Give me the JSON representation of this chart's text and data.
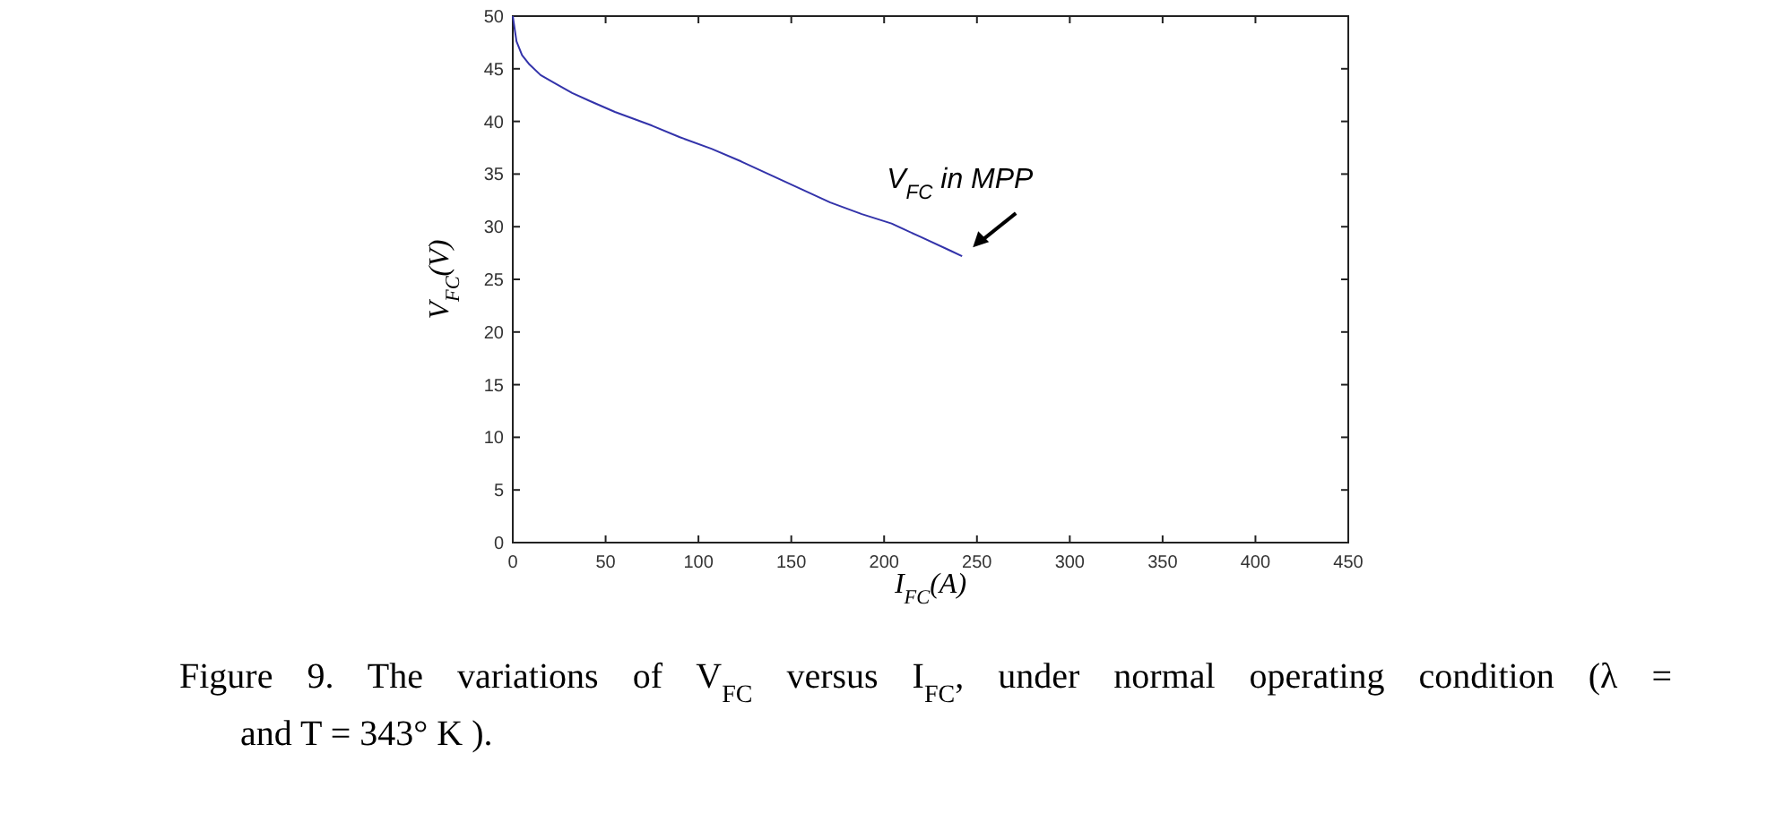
{
  "chart_data": {
    "type": "line",
    "xlabel": "I$_{FC}$(A)",
    "ylabel": "V$_{FC}$(V)",
    "x": [
      0,
      2,
      5,
      9,
      15,
      23,
      32,
      42,
      55,
      75,
      90,
      107,
      123,
      139,
      155,
      171,
      188,
      204,
      220,
      236,
      242
    ],
    "series": [
      {
        "color": "#3333aa",
        "values": [
          50,
          47.6,
          46.3,
          45.4,
          44.4,
          43.6,
          42.7,
          41.9,
          40.9,
          39.6,
          38.5,
          37.4,
          36.2,
          34.9,
          33.6,
          32.3,
          31.2,
          30.3,
          29.0,
          27.7,
          27.2
        ]
      }
    ],
    "xlim": [
      0,
      450
    ],
    "xticks": [
      0,
      50,
      100,
      150,
      200,
      250,
      300,
      350,
      400,
      450
    ],
    "ylim": [
      0,
      50
    ],
    "yticks": [
      0,
      5,
      10,
      15,
      20,
      25,
      30,
      35,
      40,
      45,
      50
    ],
    "marker": "none",
    "line_style": "solid",
    "annotations": [
      {
        "text": "V$_{FC}$ in MPP",
        "x": 242,
        "y": 27.2
      },
      "Figure 9. The variations of V$_{FC}$ versus I$_{FC}$, under normal operating condition (λ =",
      "and T = 343° K )."
    ]
  }
}
